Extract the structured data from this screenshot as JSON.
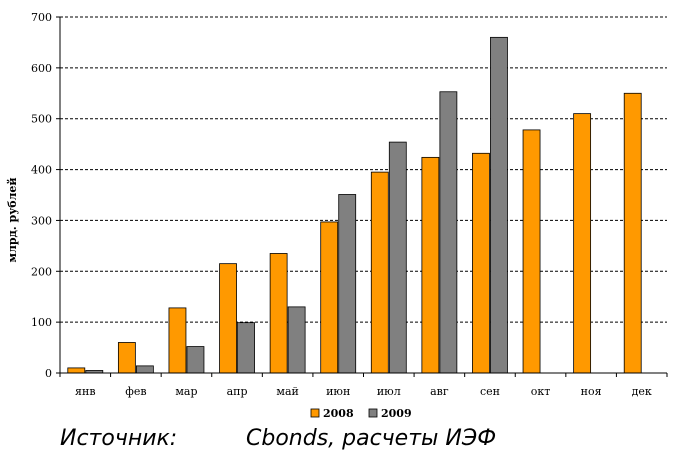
{
  "chart_data": {
    "type": "bar",
    "ylabel": "млрд. рублей",
    "xlabel": "",
    "ylim": [
      0,
      700
    ],
    "yticks": [
      0,
      100,
      200,
      300,
      400,
      500,
      600,
      700
    ],
    "grid": true,
    "legend_position": "bottom",
    "categories": [
      "янв",
      "фев",
      "мар",
      "апр",
      "май",
      "июн",
      "июл",
      "авг",
      "сен",
      "окт",
      "ноя",
      "дек"
    ],
    "series": [
      {
        "name": "2008",
        "color": "#ff9900",
        "values": [
          10,
          60,
          128,
          215,
          235,
          297,
          395,
          424,
          432,
          478,
          510,
          550
        ]
      },
      {
        "name": "2009",
        "color": "#808080",
        "values": [
          5,
          14,
          52,
          99,
          130,
          351,
          454,
          553,
          660,
          null,
          null,
          null
        ]
      }
    ]
  },
  "source": {
    "label": "Источник:",
    "value": "Cbonds, расчеты ИЭФ"
  }
}
